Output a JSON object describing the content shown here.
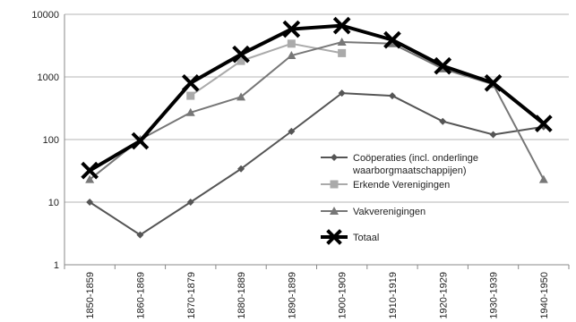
{
  "chart_data": {
    "type": "line",
    "title": "",
    "xlabel": "",
    "ylabel": "",
    "y_scale": "log",
    "ylim": [
      1,
      10000
    ],
    "y_ticks": [
      1,
      10,
      100,
      1000,
      10000
    ],
    "y_tick_labels": [
      "1",
      "10",
      "100",
      "1000",
      "10000"
    ],
    "grid": "horizontal",
    "legend_position": "right-inside",
    "categories": [
      "1850-1859",
      "1860-1869",
      "1870-1879",
      "1880-1889",
      "1890-1899",
      "1900-1909",
      "1910-1919",
      "1920-1929",
      "1930-1939",
      "1940-1950"
    ],
    "series": [
      {
        "name": "Coöperaties (incl. onderlinge waarborgmaatschappijen)",
        "legend_lines": [
          "Coöperaties (incl. onderlinge",
          "waarborgmaatschappijen)"
        ],
        "marker": "diamond",
        "color": "#555555",
        "values": [
          10,
          3,
          10,
          34,
          135,
          550,
          500,
          195,
          120,
          160
        ]
      },
      {
        "name": "Erkende Verenigingen",
        "legend_lines": [
          "Erkende Verenigingen"
        ],
        "marker": "square",
        "color": "#aaaaaa",
        "values": [
          null,
          null,
          500,
          1800,
          3400,
          2400,
          null,
          null,
          null,
          null
        ]
      },
      {
        "name": "Vakverenigingen",
        "legend_lines": [
          "Vakverenigingen"
        ],
        "marker": "triangle",
        "color": "#777777",
        "values": [
          23,
          100,
          270,
          480,
          2200,
          3600,
          3400,
          1350,
          760,
          23
        ]
      },
      {
        "name": "Totaal",
        "legend_lines": [
          "Totaal"
        ],
        "marker": "x",
        "color": "#000000",
        "values": [
          32,
          95,
          800,
          2300,
          5800,
          6600,
          3900,
          1500,
          800,
          180
        ]
      }
    ]
  }
}
